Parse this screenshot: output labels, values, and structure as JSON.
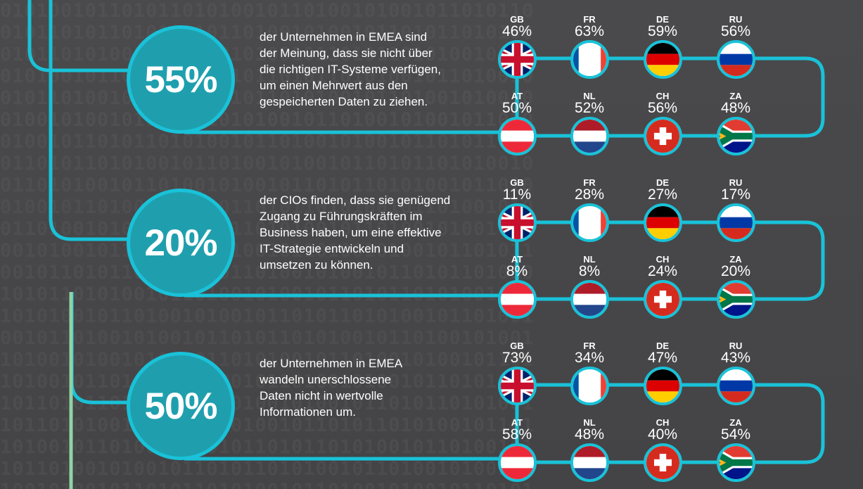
{
  "colors": {
    "accent": "#19c2d8",
    "circle": "#1f9fae",
    "background": "#454547"
  },
  "background_binary": "0101001011010110101001011010",
  "stats": [
    {
      "value": "55%",
      "desc": [
        "der Unternehmen in EMEA sind",
        "der Meinung, dass sie nicht über",
        "die richtigen IT-Systeme verfügen,",
        "um einen Mehrwert aus den",
        "gespeicherten Daten zu ziehen."
      ],
      "countries": [
        {
          "code": "GB",
          "pct": "46%",
          "flag": "uk-flag"
        },
        {
          "code": "FR",
          "pct": "63%",
          "flag": "france-flag"
        },
        {
          "code": "DE",
          "pct": "59%",
          "flag": "germany-flag"
        },
        {
          "code": "RU",
          "pct": "56%",
          "flag": "russia-flag"
        },
        {
          "code": "AT",
          "pct": "50%",
          "flag": "austria-flag"
        },
        {
          "code": "NL",
          "pct": "52%",
          "flag": "netherlands-flag"
        },
        {
          "code": "CH",
          "pct": "56%",
          "flag": "switzerland-flag"
        },
        {
          "code": "ZA",
          "pct": "48%",
          "flag": "south-africa-flag"
        }
      ]
    },
    {
      "value": "20%",
      "desc": [
        "der CIOs finden, dass sie genügend",
        "Zugang zu Führungskräften im",
        "Business haben, um eine effektive",
        "IT-Strategie entwickeln und",
        "umsetzen zu können."
      ],
      "countries": [
        {
          "code": "GB",
          "pct": "11%",
          "flag": "uk-flag"
        },
        {
          "code": "FR",
          "pct": "28%",
          "flag": "france-flag"
        },
        {
          "code": "DE",
          "pct": "27%",
          "flag": "germany-flag"
        },
        {
          "code": "RU",
          "pct": "17%",
          "flag": "russia-flag"
        },
        {
          "code": "AT",
          "pct": "8%",
          "flag": "austria-flag"
        },
        {
          "code": "NL",
          "pct": "8%",
          "flag": "netherlands-flag"
        },
        {
          "code": "CH",
          "pct": "24%",
          "flag": "switzerland-flag"
        },
        {
          "code": "ZA",
          "pct": "20%",
          "flag": "south-africa-flag"
        }
      ]
    },
    {
      "value": "50%",
      "desc": [
        "der Unternehmen in EMEA",
        "wandeln unerschlossene",
        "Daten nicht in wertvolle",
        "Informationen um."
      ],
      "countries": [
        {
          "code": "GB",
          "pct": "73%",
          "flag": "uk-flag"
        },
        {
          "code": "FR",
          "pct": "34%",
          "flag": "france-flag"
        },
        {
          "code": "DE",
          "pct": "47%",
          "flag": "germany-flag"
        },
        {
          "code": "RU",
          "pct": "43%",
          "flag": "russia-flag"
        },
        {
          "code": "AT",
          "pct": "58%",
          "flag": "austria-flag"
        },
        {
          "code": "NL",
          "pct": "48%",
          "flag": "netherlands-flag"
        },
        {
          "code": "CH",
          "pct": "40%",
          "flag": "switzerland-flag"
        },
        {
          "code": "ZA",
          "pct": "54%",
          "flag": "south-africa-flag"
        }
      ]
    }
  ]
}
